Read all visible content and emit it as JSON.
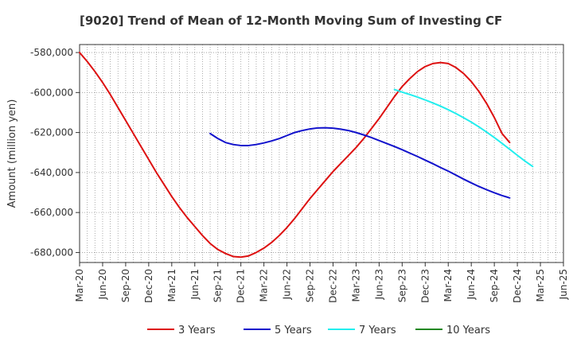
{
  "chart_data": {
    "type": "line",
    "title": "[9020]  Trend of Mean of 12-Month Moving Sum of Investing CF",
    "xlabel": "",
    "ylabel": "Amount (million yen)",
    "ylim": [
      -685000,
      -576000
    ],
    "yticks": [
      -580000,
      -600000,
      -620000,
      -640000,
      -660000,
      -680000
    ],
    "ytick_labels": [
      "-580,000",
      "-600,000",
      "-620,000",
      "-640,000",
      "-660,000",
      "-680,000"
    ],
    "x_start": "Mar-20",
    "x_end": "Jun-25",
    "xtick_labels": [
      "Mar-20",
      "Jun-20",
      "Sep-20",
      "Dec-20",
      "Mar-21",
      "Jun-21",
      "Sep-21",
      "Dec-21",
      "Mar-22",
      "Jun-22",
      "Sep-22",
      "Dec-22",
      "Mar-23",
      "Jun-23",
      "Sep-23",
      "Dec-23",
      "Mar-24",
      "Jun-24",
      "Sep-24",
      "Dec-24",
      "Mar-25",
      "Jun-25"
    ],
    "grid": true,
    "legend_position": "bottom",
    "series": [
      {
        "name": "3 Years",
        "color": "#dd1111",
        "start": "Mar-20",
        "values": [
          -580000,
          -584500,
          -589500,
          -595000,
          -601000,
          -607500,
          -614000,
          -620500,
          -627000,
          -633500,
          -640000,
          -646000,
          -652000,
          -657500,
          -662500,
          -667000,
          -671500,
          -675500,
          -678500,
          -680500,
          -682000,
          -682300,
          -681700,
          -680000,
          -677800,
          -675000,
          -671500,
          -667500,
          -663000,
          -658000,
          -653000,
          -648500,
          -644000,
          -639500,
          -635500,
          -631500,
          -627500,
          -623000,
          -618000,
          -613000,
          -607500,
          -602000,
          -597000,
          -593000,
          -589500,
          -587000,
          -585500,
          -585000,
          -585500,
          -587500,
          -590500,
          -594500,
          -599500,
          -605500,
          -612500,
          -620500,
          -625000
        ]
      },
      {
        "name": "5 Years",
        "color": "#1111cc",
        "start": "Aug-21",
        "values": [
          -620500,
          -623000,
          -625000,
          -626000,
          -626500,
          -626500,
          -626000,
          -625200,
          -624200,
          -623000,
          -621500,
          -620000,
          -619000,
          -618200,
          -617700,
          -617600,
          -617800,
          -618300,
          -619000,
          -620000,
          -621200,
          -622500,
          -624000,
          -625500,
          -627000,
          -628600,
          -630300,
          -632000,
          -633800,
          -635600,
          -637500,
          -639300,
          -641300,
          -643300,
          -645200,
          -647000,
          -648600,
          -650100,
          -651500,
          -652700
        ]
      },
      {
        "name": "7 Years",
        "color": "#22eeee",
        "start": "Aug-23",
        "values": [
          -598500,
          -599800,
          -601000,
          -602300,
          -603700,
          -605200,
          -606800,
          -608600,
          -610500,
          -612600,
          -614800,
          -617200,
          -619800,
          -622500,
          -625400,
          -628400,
          -631400,
          -634300,
          -637000
        ]
      },
      {
        "name": "10 Years",
        "color": "#228822",
        "start": "Mar-25",
        "values": []
      }
    ]
  }
}
